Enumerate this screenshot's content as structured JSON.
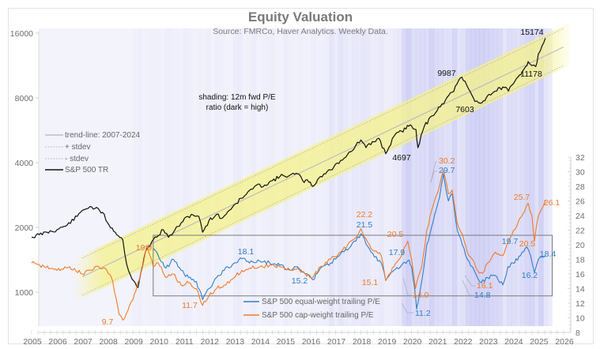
{
  "chart_data": {
    "type": "line",
    "title": "Equity Valuation",
    "subtitle": "Source: FMRCo, Haver Analytics. Weekly Data.",
    "annotation": [
      "shading: 12m fwd P/E",
      "ratio (dark = high)"
    ],
    "x_axis": {
      "range": [
        2005,
        2026
      ],
      "tick_labels": [
        "2005",
        "2006",
        "2007",
        "2008",
        "2009",
        "2010",
        "2011",
        "2012",
        "2013",
        "2014",
        "2015",
        "2016",
        "2017",
        "2018",
        "2019",
        "2020",
        "2021",
        "2022",
        "2023",
        "2024",
        "2025",
        "2026"
      ]
    },
    "y_left": {
      "scale": "log",
      "range": [
        1000,
        16000
      ],
      "tick_labels": [
        "16000",
        "8000",
        "4000",
        "2000",
        "1000"
      ],
      "tick_values": [
        16000,
        8000,
        4000,
        2000,
        1000
      ]
    },
    "y_right": {
      "scale": "linear",
      "range": [
        8,
        32
      ],
      "tick_labels": [
        "32",
        "30",
        "28",
        "26",
        "24",
        "22",
        "20",
        "18",
        "16",
        "14",
        "12",
        "10",
        "8"
      ],
      "tick_values": [
        32,
        30,
        28,
        26,
        24,
        22,
        20,
        18,
        16,
        14,
        12,
        10,
        8
      ]
    },
    "legend_left": {
      "placement": "middle-left",
      "entries": [
        {
          "label": "trend-line: 2007-2024",
          "style": "solid-gray"
        },
        {
          "label": "+ stdev",
          "style": "dotted-gray"
        },
        {
          "label": "- stdev",
          "style": "dotted-gray"
        },
        {
          "label": "S&P 500 TR",
          "style": "solid-black"
        }
      ]
    },
    "legend_bottom": {
      "placement": "bottom-center",
      "entries": [
        {
          "label": "S&P 500 equal-weight trailing P/E",
          "color": "#2e7fc6"
        },
        {
          "label": "S&P 500 cap-weight trailing P/E",
          "color": "#f07a2a"
        }
      ]
    },
    "trend": {
      "start": {
        "x": 2007.0,
        "y": 1180
      },
      "end": {
        "x": 2026.0,
        "y": 13800
      },
      "stdev_factor": 1.22
    },
    "series": [
      {
        "name": "S&P 500 TR",
        "axis": "left",
        "color": "#111111",
        "x": [
          2005.0,
          2005.3,
          2005.6,
          2006.0,
          2006.4,
          2006.8,
          2007.0,
          2007.3,
          2007.5,
          2007.8,
          2008.0,
          2008.3,
          2008.6,
          2008.75,
          2008.9,
          2009.2,
          2009.5,
          2009.8,
          2010.2,
          2010.4,
          2010.6,
          2010.9,
          2011.3,
          2011.6,
          2011.75,
          2012.0,
          2012.3,
          2012.5,
          2012.8,
          2013.0,
          2013.4,
          2013.8,
          2014.2,
          2014.5,
          2014.8,
          2015.2,
          2015.5,
          2015.7,
          2016.0,
          2016.1,
          2016.4,
          2016.8,
          2017.2,
          2017.6,
          2018.0,
          2018.2,
          2018.7,
          2018.98,
          2019.3,
          2019.6,
          2019.95,
          2020.17,
          2020.25,
          2020.5,
          2020.8,
          2021.2,
          2021.6,
          2021.98,
          2022.3,
          2022.5,
          2022.78,
          2023.0,
          2023.3,
          2023.6,
          2023.82,
          2024.2,
          2024.5,
          2024.6,
          2024.75,
          2024.9,
          2025.0,
          2025.15,
          2025.28
        ],
        "values": [
          1800,
          1850,
          1900,
          1950,
          2050,
          2250,
          2400,
          2500,
          2450,
          2350,
          2100,
          1900,
          1750,
          1350,
          1200,
          1050,
          1550,
          1750,
          1950,
          1800,
          1900,
          2100,
          2300,
          2250,
          1900,
          2150,
          2300,
          2200,
          2400,
          2550,
          2800,
          3100,
          3150,
          3300,
          3450,
          3500,
          3550,
          3300,
          3250,
          3100,
          3450,
          3700,
          4100,
          4500,
          5100,
          4700,
          5200,
          4400,
          5300,
          5600,
          6000,
          5700,
          4697,
          5900,
          6600,
          7500,
          8500,
          9987,
          8600,
          7700,
          7603,
          8200,
          8600,
          9000,
          8600,
          10000,
          11200,
          11800,
          11300,
          11178,
          12800,
          14000,
          15174
        ]
      },
      {
        "name": "S&P 500 equal-weight trailing P/E",
        "axis": "right",
        "color": "#2e7fc6",
        "x": [
          2009.8,
          2010.0,
          2010.3,
          2010.6,
          2010.9,
          2011.2,
          2011.5,
          2011.75,
          2012.0,
          2012.3,
          2012.6,
          2013.0,
          2013.3,
          2013.6,
          2014.0,
          2014.4,
          2014.8,
          2015.2,
          2015.5,
          2015.8,
          2016.1,
          2016.4,
          2016.8,
          2017.2,
          2017.6,
          2017.8,
          2018.0,
          2018.4,
          2018.8,
          2018.98,
          2019.3,
          2019.6,
          2019.9,
          2020.0,
          2020.1,
          2020.2,
          2020.25,
          2020.4,
          2020.6,
          2020.9,
          2021.1,
          2021.25,
          2021.45,
          2021.6,
          2021.8,
          2022.0,
          2022.2,
          2022.4,
          2022.6,
          2022.75,
          2023.0,
          2023.3,
          2023.6,
          2023.8,
          2024.0,
          2024.3,
          2024.55,
          2024.7,
          2024.85,
          2025.0,
          2025.15,
          2025.28
        ],
        "values": [
          19.5,
          18.5,
          16.8,
          18.0,
          16.5,
          15.5,
          15.0,
          12.5,
          14.0,
          15.5,
          16.5,
          17.5,
          18.1,
          17.5,
          17.8,
          17.5,
          17.2,
          16.5,
          17.0,
          16.0,
          15.2,
          16.8,
          17.5,
          18.8,
          19.8,
          20.5,
          21.5,
          19.0,
          17.5,
          15.1,
          16.5,
          17.2,
          17.9,
          17.0,
          14.5,
          11.2,
          12.0,
          15.0,
          20.0,
          24.0,
          26.5,
          29.7,
          26.0,
          27.0,
          22.0,
          20.0,
          18.0,
          17.0,
          15.5,
          14.8,
          15.5,
          15.8,
          14.5,
          17.0,
          17.5,
          18.5,
          19.7,
          18.5,
          16.2,
          18.0,
          18.3,
          18.4
        ]
      },
      {
        "name": "S&P 500 cap-weight trailing P/E",
        "axis": "right",
        "color": "#f07a2a",
        "x": [
          2005.0,
          2005.5,
          2006.0,
          2006.5,
          2007.0,
          2007.5,
          2007.9,
          2008.2,
          2008.45,
          2008.6,
          2008.8,
          2009.0,
          2009.3,
          2009.55,
          2009.8,
          2010.0,
          2010.3,
          2010.6,
          2010.9,
          2011.2,
          2011.5,
          2011.75,
          2012.0,
          2012.3,
          2012.6,
          2013.0,
          2013.3,
          2013.6,
          2014.0,
          2014.4,
          2014.8,
          2015.2,
          2015.5,
          2015.8,
          2016.1,
          2016.4,
          2016.8,
          2017.2,
          2017.6,
          2017.8,
          2018.0,
          2018.4,
          2018.8,
          2018.98,
          2019.3,
          2019.6,
          2019.85,
          2020.0,
          2020.15,
          2020.25,
          2020.4,
          2020.6,
          2020.9,
          2021.1,
          2021.25,
          2021.45,
          2021.6,
          2021.8,
          2022.0,
          2022.2,
          2022.4,
          2022.6,
          2022.8,
          2023.0,
          2023.3,
          2023.6,
          2023.9,
          2024.2,
          2024.45,
          2024.6,
          2024.75,
          2024.85,
          2025.0,
          2025.15,
          2025.28
        ],
        "values": [
          17.5,
          17.0,
          16.5,
          17.0,
          16.0,
          17.0,
          16.8,
          15.0,
          10.5,
          9.7,
          11.0,
          12.5,
          16.0,
          19.9,
          17.0,
          17.5,
          15.5,
          16.0,
          14.5,
          14.8,
          14.0,
          11.7,
          13.0,
          14.0,
          14.5,
          15.5,
          16.5,
          16.8,
          17.0,
          17.2,
          17.0,
          16.5,
          16.8,
          16.0,
          15.5,
          17.0,
          18.0,
          19.0,
          20.5,
          21.0,
          22.2,
          19.5,
          18.5,
          15.1,
          17.0,
          18.5,
          20.5,
          18.0,
          14.0,
          15.5,
          17.0,
          22.0,
          26.0,
          28.0,
          30.2,
          27.0,
          27.5,
          23.0,
          21.5,
          19.0,
          18.0,
          16.5,
          16.1,
          17.5,
          19.0,
          18.5,
          21.0,
          23.0,
          24.5,
          25.7,
          24.0,
          20.5,
          24.0,
          25.0,
          26.1
        ]
      }
    ],
    "labels": {
      "sp500": [
        {
          "text": "15174",
          "x": 2025.28,
          "y": 15174
        },
        {
          "text": "9987",
          "x": 2021.98,
          "y": 9987
        },
        {
          "text": "11178",
          "x": 2024.9,
          "y": 11178
        },
        {
          "text": "7603",
          "x": 2022.78,
          "y": 7603
        },
        {
          "text": "4697",
          "x": 2020.25,
          "y": 4697
        }
      ],
      "equal_weight": [
        "18.1",
        "15.2",
        "21.5",
        "17.9",
        "11.2",
        "29.7",
        "14.8",
        "19.7",
        "16.2",
        "18.4"
      ],
      "cap_weight": [
        "9.7",
        "19.9",
        "11.7",
        "15.1",
        "22.2",
        "20.5",
        "14.0",
        "30.2",
        "16.1",
        "25.7",
        "20.5",
        "26.1"
      ]
    },
    "box": {
      "x_range": [
        2009.8,
        2025.55
      ],
      "y_range": [
        13,
        21.3
      ]
    },
    "shading": {
      "description": "vertical bands, darker where 12m fwd P/E is high",
      "dark_period": [
        2019.5,
        2025.3
      ]
    },
    "grid": false
  }
}
